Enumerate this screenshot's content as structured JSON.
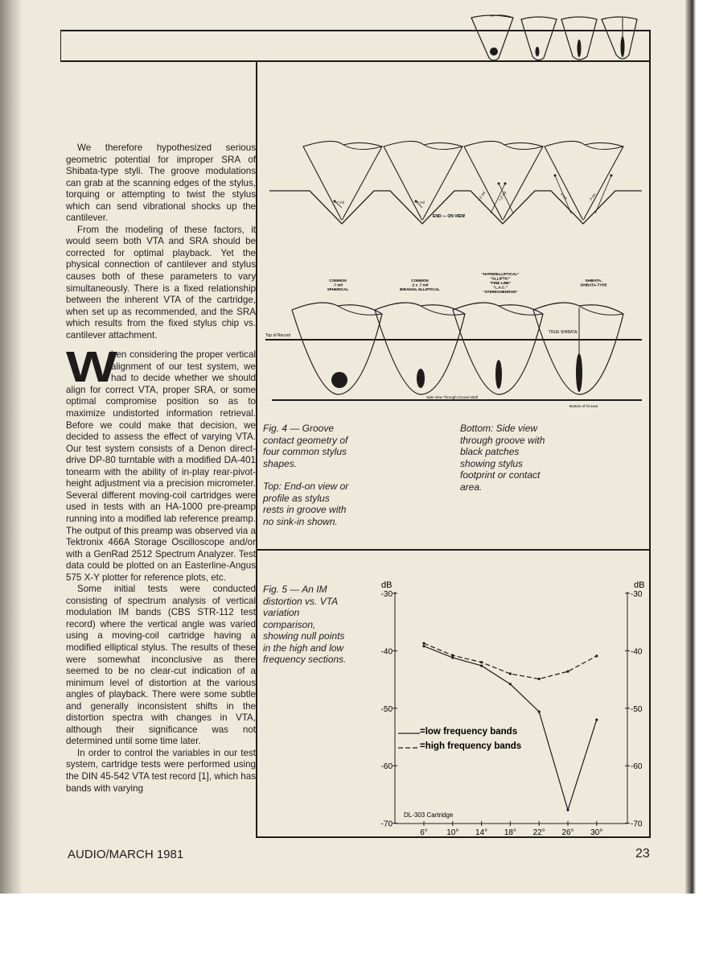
{
  "body_text": {
    "paragraphs": [
      "We therefore hypothesized serious geometric potential for improper SRA of Shibata-type styli. The groove modulations can grab at the scanning edges of the stylus, torquing or attempting to twist the stylus which can send vibrational shocks up the cantilever.",
      "From the modeling of these factors, it would seem both VTA and SRA should be corrected for optimal playback. Yet the physical connection of cantilever and stylus causes both of these parameters to vary simultaneously. There is a fixed relationship between the inherent VTA of the cartridge, when set up as recommended, and the SRA which results from the fixed stylus chip vs. cantilever attachment."
    ],
    "drop_cap": "W",
    "section_paragraphs": [
      "hen considering the proper vertical alignment of our test system, we had to decide whether we should align for correct VTA, proper SRA, or some optimal compromise position so as to maximize undistorted information retrieval. Before we could make that decision, we decided to assess the effect of varying VTA. Our test system consists of a Denon direct-drive DP-80 turntable with a modified DA-401 tonearm with the ability of in-play rear-pivot-height adjustment via a precision micrometer. Several different moving-coil cartridges were used in tests with an HA-1000 pre-preamp running into a modified lab reference preamp. The output of this preamp was observed via a Tektronix 466A Storage Oscilloscope and/or with a GenRad 2512 Spectrum Analyzer. Test data could be plotted on an Easterline-Angus 575 X-Y plotter for reference plots, etc.",
      "Some initial tests were conducted consisting of spectrum analysis of vertical modulation IM bands (CBS STR-112 test record) where the vertical angle was varied using a moving-coil cartridge having a modified elliptical stylus. The results of these were somewhat inconclusive as there seemed to be no clear-cut indication of a minimum level of distortion at the various angles of playback. There were some subtle and generally inconsistent shifts in the distortion spectra with changes in VTA, although their significance was not determined until some time later.",
      "In order to control the variables in our test system, cartridge tests were performed using the DIN 45-542 VTA test record [1], which has bands with varying"
    ]
  },
  "fig4": {
    "end_on_labels": [
      ".7 mil",
      ".7 mil",
      "≈.2 mil",
      "≈.2 mil",
      ".3 mil",
      ".3 mil"
    ],
    "end_on_view": "END — ON VIEW",
    "types": [
      [
        "COMMON",
        ".7 mil",
        "SPHERICAL"
      ],
      [
        "COMMON",
        ".2 x .7 mil",
        "BIRADIAL ELLIPTICAL"
      ],
      [
        "\"HYPERELLIPTICAL\"",
        "\"ALLIPTIC\"",
        "\"FINE LINE\"",
        "\"L.A.C.\"",
        "\"STEREOHEDRON\""
      ],
      [
        "SHIBATA,",
        "SHIBATA-TYPE"
      ]
    ],
    "top_of_record": "Top of Record",
    "true_shibata": "TRUE SHIBATA",
    "side_view": "Side View Through Groove Wall",
    "bottom_of_groove": "Bottom of Groove",
    "caption_left": [
      "Fig. 4 — Groove contact geometry of four common stylus shapes.",
      "Top: End-on view or profile as stylus rests in groove with no sink-in shown."
    ],
    "caption_right": [
      "Bottom: Side view through groove with black patches showing stylus footprint or contact area."
    ]
  },
  "fig5": {
    "caption": "Fig. 5 — An IM distortion vs. VTA variation comparison, showing null points in the high and low frequency sections."
  },
  "chart_data": {
    "type": "line",
    "x": [
      6,
      10,
      14,
      18,
      22,
      26,
      30
    ],
    "x_tick_labels": [
      "6°",
      "10°",
      "14°",
      "18°",
      "22°",
      "26°",
      "30°"
    ],
    "ylabel_left": "dB",
    "ylabel_right": "dB",
    "y_ticks": [
      -30,
      -40,
      -50,
      -60,
      -70
    ],
    "y_tick_labels": [
      "-30",
      "-40",
      "-50",
      "-60",
      "-70"
    ],
    "ylim": [
      -70,
      -30
    ],
    "grid": false,
    "annotation": "DL-303 Cartridge",
    "legend_position": "center-left",
    "series": [
      {
        "name": "=low frequency bands",
        "style": "solid",
        "values": [
          -39.2,
          -41.2,
          -42.6,
          -45.8,
          -50.6,
          -67.7,
          -52.0
        ]
      },
      {
        "name": "=high frequency bands",
        "style": "dashed",
        "values": [
          -38.7,
          -40.8,
          -42.0,
          -44.0,
          -44.9,
          -43.6,
          -40.9
        ]
      }
    ]
  },
  "footer": {
    "publication": "AUDIO/MARCH 1981",
    "page_number": "23"
  },
  "colors": {
    "paper": "#efe9dc",
    "ink": "#1e1c1a"
  }
}
